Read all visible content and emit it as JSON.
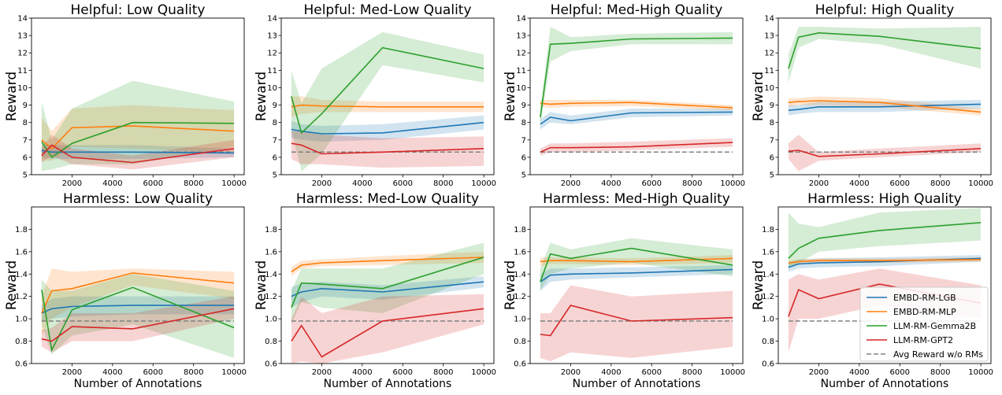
{
  "figure": {
    "legend_position": "lower-right of last panel"
  },
  "series_styles": [
    {
      "name": "EMBD-RM-LGB",
      "color": "#1f77b4"
    },
    {
      "name": "EMBD-RM-MLP",
      "color": "#ff7f0e"
    },
    {
      "name": "LLM-RM-Gemma2B",
      "color": "#2ca02c"
    },
    {
      "name": "LLM-RM-GPT2",
      "color": "#d62728"
    },
    {
      "name": "Avg Reward w/o RMs",
      "color": "#808080",
      "dashed": true
    }
  ],
  "chart_data": [
    {
      "type": "line",
      "title": "Helpful: Low Quality",
      "ylabel": "Reward",
      "xlabel": "",
      "xlim": [
        0,
        10500
      ],
      "ylim": [
        5,
        14
      ],
      "xticks": [
        2000,
        4000,
        6000,
        8000,
        10000
      ],
      "yticks": [
        5,
        6,
        7,
        8,
        9,
        10,
        11,
        12,
        13,
        14
      ],
      "x": [
        500,
        1000,
        2000,
        5000,
        10000
      ],
      "baseline": 6.3,
      "series": [
        {
          "name": "EMBD-RM-LGB",
          "values": [
            6.4,
            6.3,
            6.3,
            6.3,
            6.25
          ],
          "lower": [
            6.0,
            5.9,
            5.9,
            5.9,
            6.0
          ],
          "upper": [
            6.8,
            6.7,
            6.7,
            6.7,
            6.5
          ]
        },
        {
          "name": "EMBD-RM-MLP",
          "values": [
            7.0,
            6.5,
            7.7,
            7.8,
            7.5
          ],
          "lower": [
            5.8,
            5.8,
            6.6,
            6.5,
            6.3
          ],
          "upper": [
            8.3,
            7.5,
            8.8,
            9.0,
            8.7
          ]
        },
        {
          "name": "LLM-RM-Gemma2B",
          "values": [
            6.9,
            6.0,
            6.8,
            8.0,
            7.95
          ],
          "lower": [
            5.2,
            5.3,
            5.6,
            5.6,
            6.6
          ],
          "upper": [
            9.2,
            7.0,
            8.8,
            10.4,
            9.2
          ]
        },
        {
          "name": "LLM-RM-GPT2",
          "values": [
            6.1,
            6.7,
            6.0,
            5.7,
            6.5
          ],
          "lower": [
            5.7,
            6.1,
            5.6,
            5.3,
            6.0
          ],
          "upper": [
            6.5,
            7.3,
            6.5,
            6.1,
            7.0
          ]
        }
      ]
    },
    {
      "type": "line",
      "title": "Helpful: Med-Low Quality",
      "ylabel": "Reward",
      "xlabel": "",
      "xlim": [
        0,
        10500
      ],
      "ylim": [
        5,
        14
      ],
      "xticks": [
        2000,
        4000,
        6000,
        8000,
        10000
      ],
      "yticks": [
        5,
        6,
        7,
        8,
        9,
        10,
        11,
        12,
        13,
        14
      ],
      "x": [
        500,
        1000,
        2000,
        5000,
        10000
      ],
      "baseline": 6.3,
      "series": [
        {
          "name": "EMBD-RM-LGB",
          "values": [
            7.6,
            7.5,
            7.35,
            7.4,
            8.0
          ],
          "lower": [
            7.1,
            7.0,
            6.9,
            7.0,
            7.6
          ],
          "upper": [
            8.1,
            7.9,
            7.8,
            7.9,
            8.4
          ]
        },
        {
          "name": "EMBD-RM-MLP",
          "values": [
            8.9,
            9.0,
            8.95,
            8.9,
            8.9
          ],
          "lower": [
            8.3,
            8.5,
            8.6,
            8.6,
            8.6
          ],
          "upper": [
            9.5,
            9.5,
            9.3,
            9.2,
            9.2
          ]
        },
        {
          "name": "LLM-RM-Gemma2B",
          "values": [
            9.5,
            7.4,
            8.5,
            12.3,
            11.1
          ],
          "lower": [
            7.6,
            5.2,
            6.2,
            11.3,
            10.3
          ],
          "upper": [
            11.0,
            9.1,
            11.1,
            13.2,
            11.9
          ]
        },
        {
          "name": "LLM-RM-GPT2",
          "values": [
            6.8,
            6.7,
            6.2,
            6.3,
            6.5
          ],
          "lower": [
            5.9,
            5.6,
            5.6,
            5.4,
            5.5
          ],
          "upper": [
            7.5,
            7.5,
            7.3,
            7.1,
            7.2
          ]
        }
      ]
    },
    {
      "type": "line",
      "title": "Helpful: Med-High Quality",
      "ylabel": "Reward",
      "xlabel": "",
      "xlim": [
        0,
        10500
      ],
      "ylim": [
        5,
        14
      ],
      "xticks": [
        2000,
        4000,
        6000,
        8000,
        10000
      ],
      "yticks": [
        5,
        6,
        7,
        8,
        9,
        10,
        11,
        12,
        13,
        14
      ],
      "x": [
        500,
        1000,
        2000,
        5000,
        10000
      ],
      "baseline": 6.3,
      "series": [
        {
          "name": "EMBD-RM-LGB",
          "values": [
            7.9,
            8.3,
            8.1,
            8.55,
            8.6
          ],
          "lower": [
            7.6,
            8.0,
            7.9,
            8.3,
            8.4
          ],
          "upper": [
            8.2,
            8.6,
            8.4,
            8.8,
            8.8
          ]
        },
        {
          "name": "EMBD-RM-MLP",
          "values": [
            9.1,
            9.05,
            9.1,
            9.15,
            8.85
          ],
          "lower": [
            8.9,
            8.85,
            8.9,
            8.95,
            8.7
          ],
          "upper": [
            9.3,
            9.3,
            9.3,
            9.3,
            9.0
          ]
        },
        {
          "name": "LLM-RM-Gemma2B",
          "values": [
            8.3,
            12.5,
            12.55,
            12.8,
            12.85
          ],
          "lower": [
            7.8,
            11.5,
            12.1,
            12.5,
            12.5
          ],
          "upper": [
            8.8,
            13.5,
            12.9,
            13.1,
            13.2
          ]
        },
        {
          "name": "LLM-RM-GPT2",
          "values": [
            6.3,
            6.55,
            6.55,
            6.6,
            6.85
          ],
          "lower": [
            6.1,
            6.3,
            6.3,
            6.4,
            6.6
          ],
          "upper": [
            6.5,
            6.8,
            6.8,
            6.9,
            7.1
          ]
        }
      ]
    },
    {
      "type": "line",
      "title": "Helpful: High Quality",
      "ylabel": "Reward",
      "xlabel": "",
      "xlim": [
        0,
        10500
      ],
      "ylim": [
        5,
        14
      ],
      "xticks": [
        2000,
        4000,
        6000,
        8000,
        10000
      ],
      "yticks": [
        5,
        6,
        7,
        8,
        9,
        10,
        11,
        12,
        13,
        14
      ],
      "x": [
        500,
        1000,
        2000,
        5000,
        10000
      ],
      "baseline": 6.3,
      "series": [
        {
          "name": "EMBD-RM-LGB",
          "values": [
            8.7,
            8.75,
            8.9,
            8.9,
            9.05
          ],
          "lower": [
            8.4,
            8.5,
            8.6,
            8.6,
            8.8
          ],
          "upper": [
            9.0,
            9.0,
            9.2,
            9.2,
            9.3
          ]
        },
        {
          "name": "EMBD-RM-MLP",
          "values": [
            9.15,
            9.2,
            9.25,
            9.15,
            8.6
          ],
          "lower": [
            8.9,
            9.0,
            9.0,
            8.9,
            8.4
          ],
          "upper": [
            9.4,
            9.4,
            9.5,
            9.4,
            8.8
          ]
        },
        {
          "name": "LLM-RM-Gemma2B",
          "values": [
            11.1,
            12.9,
            13.15,
            12.95,
            12.25
          ],
          "lower": [
            10.3,
            12.3,
            12.8,
            12.5,
            11.1
          ],
          "upper": [
            11.9,
            13.5,
            13.5,
            13.4,
            13.5
          ]
        },
        {
          "name": "LLM-RM-GPT2",
          "values": [
            6.35,
            6.4,
            6.05,
            6.2,
            6.5
          ],
          "lower": [
            5.9,
            5.2,
            5.8,
            6.0,
            6.3
          ],
          "upper": [
            6.8,
            7.3,
            6.3,
            6.5,
            6.8
          ]
        }
      ]
    },
    {
      "type": "line",
      "title": "Harmless: Low Quality",
      "ylabel": "Reward",
      "xlabel": "Number of Annotations",
      "xlim": [
        0,
        10500
      ],
      "ylim": [
        0.6,
        2.0
      ],
      "xticks": [
        2000,
        4000,
        6000,
        8000,
        10000
      ],
      "yticks": [
        0.6,
        0.8,
        1.0,
        1.2,
        1.4,
        1.6,
        1.8
      ],
      "x": [
        500,
        1000,
        2000,
        5000,
        10000
      ],
      "baseline": 0.98,
      "series": [
        {
          "name": "EMBD-RM-LGB",
          "values": [
            1.05,
            1.09,
            1.11,
            1.12,
            1.12
          ],
          "lower": [
            0.98,
            1.0,
            1.02,
            1.04,
            1.04
          ],
          "upper": [
            1.12,
            1.18,
            1.2,
            1.2,
            1.2
          ]
        },
        {
          "name": "EMBD-RM-MLP",
          "values": [
            1.05,
            1.25,
            1.27,
            1.41,
            1.32
          ],
          "lower": [
            0.85,
            1.0,
            1.1,
            1.3,
            1.18
          ],
          "upper": [
            1.2,
            1.45,
            1.42,
            1.45,
            1.42
          ]
        },
        {
          "name": "LLM-RM-Gemma2B",
          "values": [
            1.26,
            0.72,
            1.08,
            1.28,
            0.92
          ],
          "lower": [
            0.95,
            0.68,
            0.85,
            0.95,
            0.65
          ],
          "upper": [
            1.35,
            1.25,
            1.25,
            1.4,
            1.25
          ]
        },
        {
          "name": "LLM-RM-GPT2",
          "values": [
            0.82,
            0.8,
            0.93,
            0.91,
            1.09
          ],
          "lower": [
            0.75,
            0.7,
            0.8,
            0.8,
            1.0
          ],
          "upper": [
            0.9,
            0.92,
            1.05,
            1.05,
            1.2
          ]
        }
      ]
    },
    {
      "type": "line",
      "title": "Harmless: Med-Low Quality",
      "ylabel": "Reward",
      "xlabel": "Number of Annotations",
      "xlim": [
        0,
        10500
      ],
      "ylim": [
        0.6,
        2.0
      ],
      "xticks": [
        2000,
        4000,
        6000,
        8000,
        10000
      ],
      "yticks": [
        0.6,
        0.8,
        1.0,
        1.2,
        1.4,
        1.6,
        1.8
      ],
      "x": [
        500,
        1000,
        2000,
        5000,
        10000
      ],
      "baseline": 0.98,
      "series": [
        {
          "name": "EMBD-RM-LGB",
          "values": [
            1.2,
            1.24,
            1.27,
            1.24,
            1.33
          ],
          "lower": [
            1.1,
            1.15,
            1.2,
            1.17,
            1.28
          ],
          "upper": [
            1.28,
            1.32,
            1.33,
            1.3,
            1.38
          ]
        },
        {
          "name": "EMBD-RM-MLP",
          "values": [
            1.42,
            1.48,
            1.5,
            1.52,
            1.55
          ],
          "lower": [
            1.38,
            1.45,
            1.47,
            1.48,
            1.5
          ],
          "upper": [
            1.46,
            1.52,
            1.53,
            1.56,
            1.6
          ]
        },
        {
          "name": "LLM-RM-Gemma2B",
          "values": [
            1.1,
            1.32,
            1.31,
            1.27,
            1.55
          ],
          "lower": [
            0.95,
            1.15,
            1.1,
            1.05,
            1.4
          ],
          "upper": [
            1.25,
            1.45,
            1.45,
            1.45,
            1.68
          ]
        },
        {
          "name": "LLM-RM-GPT2",
          "values": [
            0.8,
            0.94,
            0.66,
            0.98,
            1.09
          ],
          "lower": [
            0.6,
            0.62,
            0.6,
            0.7,
            0.95
          ],
          "upper": [
            1.0,
            1.2,
            1.05,
            1.2,
            1.22
          ]
        }
      ]
    },
    {
      "type": "line",
      "title": "Harmless: Med-High Quality",
      "ylabel": "Reward",
      "xlabel": "Number of Annotations",
      "xlim": [
        0,
        10500
      ],
      "ylim": [
        0.6,
        2.0
      ],
      "xticks": [
        2000,
        4000,
        6000,
        8000,
        10000
      ],
      "yticks": [
        0.6,
        0.8,
        1.0,
        1.2,
        1.4,
        1.6,
        1.8
      ],
      "x": [
        500,
        1000,
        2000,
        5000,
        10000
      ],
      "baseline": 0.98,
      "series": [
        {
          "name": "EMBD-RM-LGB",
          "values": [
            1.33,
            1.39,
            1.4,
            1.41,
            1.44
          ],
          "lower": [
            1.25,
            1.33,
            1.35,
            1.37,
            1.4
          ],
          "upper": [
            1.4,
            1.45,
            1.45,
            1.46,
            1.48
          ]
        },
        {
          "name": "EMBD-RM-MLP",
          "values": [
            1.51,
            1.52,
            1.52,
            1.51,
            1.54
          ],
          "lower": [
            1.47,
            1.49,
            1.49,
            1.48,
            1.5
          ],
          "upper": [
            1.55,
            1.55,
            1.55,
            1.54,
            1.57
          ]
        },
        {
          "name": "LLM-RM-Gemma2B",
          "values": [
            1.33,
            1.58,
            1.54,
            1.63,
            1.48
          ],
          "lower": [
            1.25,
            1.4,
            1.45,
            1.5,
            1.38
          ],
          "upper": [
            1.45,
            1.68,
            1.62,
            1.72,
            1.62
          ]
        },
        {
          "name": "LLM-RM-GPT2",
          "values": [
            0.86,
            0.85,
            1.12,
            0.98,
            1.01
          ],
          "lower": [
            0.65,
            0.62,
            0.7,
            0.65,
            0.75
          ],
          "upper": [
            1.05,
            1.05,
            1.3,
            1.2,
            1.25
          ]
        }
      ]
    },
    {
      "type": "line",
      "title": "Harmless: High Quality",
      "ylabel": "Reward",
      "xlabel": "Number of Annotations",
      "xlim": [
        0,
        10500
      ],
      "ylim": [
        0.6,
        2.0
      ],
      "xticks": [
        2000,
        4000,
        6000,
        8000,
        10000
      ],
      "yticks": [
        0.6,
        0.8,
        1.0,
        1.2,
        1.4,
        1.6,
        1.8
      ],
      "x": [
        500,
        1000,
        2000,
        5000,
        10000
      ],
      "baseline": 0.98,
      "series": [
        {
          "name": "EMBD-RM-LGB",
          "values": [
            1.46,
            1.49,
            1.5,
            1.51,
            1.54
          ],
          "lower": [
            1.42,
            1.45,
            1.46,
            1.47,
            1.51
          ],
          "upper": [
            1.5,
            1.53,
            1.54,
            1.55,
            1.57
          ]
        },
        {
          "name": "EMBD-RM-MLP",
          "values": [
            1.5,
            1.51,
            1.52,
            1.52,
            1.53
          ],
          "lower": [
            1.48,
            1.49,
            1.5,
            1.5,
            1.51
          ],
          "upper": [
            1.52,
            1.53,
            1.54,
            1.54,
            1.55
          ]
        },
        {
          "name": "LLM-RM-Gemma2B",
          "values": [
            1.54,
            1.63,
            1.72,
            1.79,
            1.86
          ],
          "lower": [
            1.45,
            1.5,
            1.6,
            1.65,
            1.7
          ],
          "upper": [
            1.95,
            1.85,
            1.82,
            1.95,
            1.99
          ]
        },
        {
          "name": "LLM-RM-GPT2",
          "values": [
            1.02,
            1.26,
            1.18,
            1.31,
            1.14
          ],
          "lower": [
            0.7,
            1.0,
            1.0,
            1.12,
            1.0
          ],
          "upper": [
            1.35,
            1.4,
            1.35,
            1.45,
            1.3
          ]
        }
      ]
    }
  ]
}
